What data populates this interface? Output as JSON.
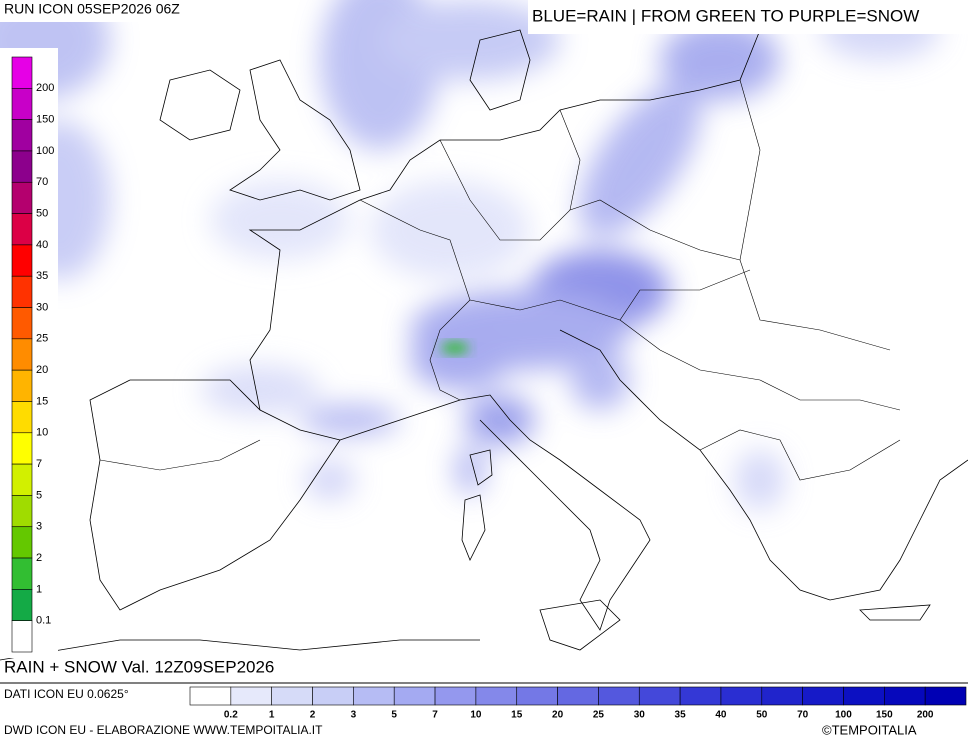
{
  "header": {
    "run": "RUN ICON 05SEP2026 06Z",
    "legend_note": "BLUE=RAIN | FROM GREEN TO PURPLE=SNOW"
  },
  "map": {
    "product": "RAIN + SNOW Val. 12Z09SEP2026"
  },
  "snow_scale": {
    "colors": [
      "#e600e6",
      "#c800c8",
      "#a000a0",
      "#8c008c",
      "#b4006e",
      "#dc0046",
      "#ff0000",
      "#ff3200",
      "#ff5a00",
      "#ff8c00",
      "#ffb400",
      "#ffdc00",
      "#ffff00",
      "#d2f000",
      "#a0dc00",
      "#64c800",
      "#32be32",
      "#14aa46",
      "#ffffff"
    ],
    "labels": [
      "200",
      "150",
      "100",
      "70",
      "50",
      "40",
      "35",
      "30",
      "25",
      "20",
      "15",
      "10",
      "7",
      "5",
      "3",
      "2",
      "1",
      "0.1"
    ]
  },
  "rain_scale": {
    "colors": [
      "#ffffff",
      "#e6e9fb",
      "#d6dbf8",
      "#c8cef6",
      "#b6bcf4",
      "#a4aaf2",
      "#9498ee",
      "#8488ea",
      "#7478e6",
      "#6468e2",
      "#5458de",
      "#4448da",
      "#3438d6",
      "#2a2ed2",
      "#2024cc",
      "#161ac8",
      "#0c10c2",
      "#0608bc",
      "#0000b4"
    ],
    "labels": [
      "0.2",
      "1",
      "2",
      "3",
      "5",
      "7",
      "10",
      "15",
      "20",
      "25",
      "30",
      "35",
      "40",
      "50",
      "70",
      "100",
      "150",
      "200"
    ]
  },
  "footer": {
    "source": "DATI ICON EU 0.0625°",
    "credit": "DWD ICON EU - ELABORAZIONE WWW.TEMPOITALIA.IT",
    "copyright": "©TEMPOITALIA"
  }
}
